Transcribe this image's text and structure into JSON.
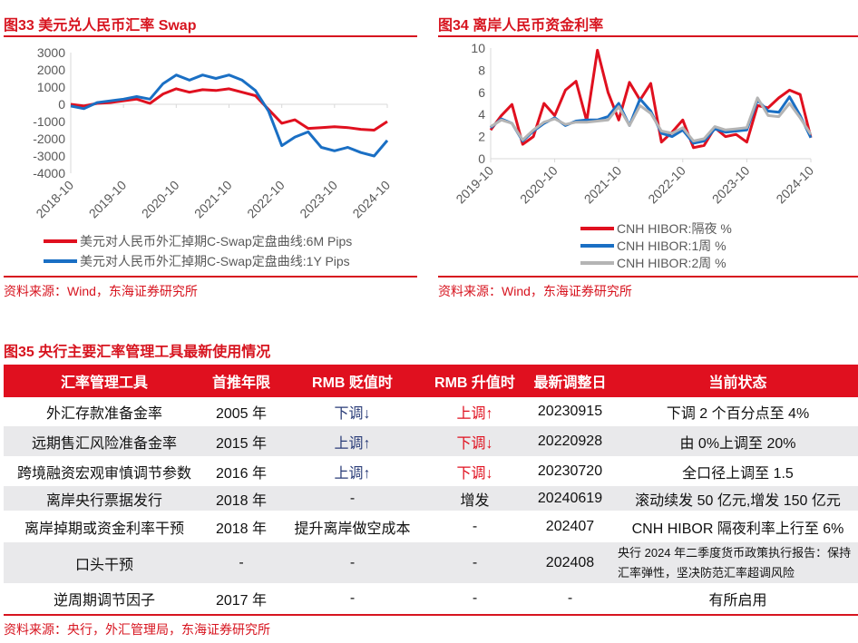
{
  "figure33": {
    "title": "图33  美元兑人民币汇率 Swap",
    "source": "资料来源：Wind，东海证券研究所"
  },
  "figure34": {
    "title": "图34  离岸人民币资金利率",
    "source": "资料来源：Wind，东海证券研究所"
  },
  "chart_data": [
    {
      "type": "line",
      "ylim": [
        -4000,
        3000
      ],
      "yticks": [
        "3000",
        "2000",
        "1000",
        "0",
        "-1000",
        "-2000",
        "-3000",
        "-4000"
      ],
      "xticks": [
        "2018-10",
        "2019-10",
        "2020-10",
        "2021-10",
        "2022-10",
        "2023-10",
        "2024-10"
      ],
      "legend_position": "bottom",
      "grid": false,
      "x": [
        "2018-10",
        "2019-01",
        "2019-04",
        "2019-07",
        "2019-10",
        "2020-01",
        "2020-04",
        "2020-07",
        "2020-10",
        "2021-01",
        "2021-04",
        "2021-07",
        "2021-10",
        "2022-01",
        "2022-04",
        "2022-07",
        "2022-10",
        "2023-01",
        "2023-04",
        "2023-07",
        "2023-10",
        "2024-01",
        "2024-04",
        "2024-07",
        "2024-10"
      ],
      "series": [
        {
          "name": "美元对人民币外汇掉期C-Swap定盘曲线:6M Pips",
          "color": "#e0101f",
          "values": [
            0,
            -100,
            50,
            100,
            200,
            300,
            50,
            600,
            900,
            700,
            850,
            800,
            900,
            700,
            500,
            -300,
            -1100,
            -900,
            -1400,
            -1350,
            -1300,
            -1350,
            -1450,
            -1500,
            -1000
          ]
        },
        {
          "name": "美元对人民币外汇掉期C-Swap定盘曲线:1Y Pips",
          "color": "#1a6fc4",
          "values": [
            -100,
            -250,
            100,
            200,
            300,
            450,
            300,
            1200,
            1700,
            1400,
            1700,
            1500,
            1700,
            1400,
            800,
            -400,
            -2400,
            -1900,
            -1600,
            -2500,
            -2700,
            -2500,
            -2800,
            -3000,
            -2100
          ]
        }
      ]
    },
    {
      "type": "line",
      "ylim": [
        0,
        10
      ],
      "yticks": [
        "10",
        "8",
        "6",
        "4",
        "2",
        "0"
      ],
      "xticks": [
        "2019-10",
        "2020-10",
        "2021-10",
        "2022-10",
        "2023-10",
        "2024-10"
      ],
      "legend_position": "bottom",
      "grid": false,
      "x": [
        "2019-10",
        "2019-12",
        "2020-02",
        "2020-04",
        "2020-06",
        "2020-08",
        "2020-10",
        "2020-12",
        "2021-02",
        "2021-04",
        "2021-06",
        "2021-08",
        "2021-10",
        "2021-12",
        "2022-02",
        "2022-04",
        "2022-06",
        "2022-08",
        "2022-10",
        "2022-12",
        "2023-02",
        "2023-04",
        "2023-06",
        "2023-08",
        "2023-10",
        "2023-12",
        "2024-02",
        "2024-04",
        "2024-06",
        "2024-08",
        "2024-10"
      ],
      "series": [
        {
          "name": "CNH HIBOR:隔夜 %",
          "color": "#e0101f",
          "values": [
            2.6,
            3.9,
            4.9,
            1.3,
            2.0,
            5.0,
            3.9,
            6.2,
            7.0,
            3.4,
            9.8,
            6.0,
            3.5,
            6.9,
            5.3,
            6.8,
            1.5,
            2.4,
            3.5,
            1.0,
            1.2,
            2.8,
            2.0,
            2.2,
            1.5,
            4.8,
            4.6,
            5.5,
            6.2,
            5.8,
            1.9
          ]
        },
        {
          "name": "CNH HIBOR:1周 %",
          "color": "#1a6fc4",
          "values": [
            2.8,
            3.6,
            3.2,
            1.6,
            2.5,
            3.2,
            3.7,
            3.0,
            3.4,
            3.5,
            3.5,
            3.8,
            5.0,
            3.0,
            5.4,
            4.3,
            2.3,
            2.0,
            2.6,
            1.4,
            1.6,
            2.7,
            2.4,
            2.5,
            2.6,
            5.3,
            4.3,
            4.2,
            5.6,
            3.9,
            1.9
          ]
        },
        {
          "name": "CNH HIBOR:2周 %",
          "color": "#b4b4b4",
          "values": [
            2.9,
            3.5,
            3.2,
            1.7,
            2.6,
            3.3,
            3.6,
            3.1,
            3.3,
            3.3,
            3.4,
            3.5,
            4.7,
            3.0,
            4.8,
            4.1,
            2.5,
            2.3,
            2.8,
            1.6,
            1.8,
            2.9,
            2.6,
            2.7,
            2.8,
            5.5,
            3.9,
            3.8,
            5.0,
            3.7,
            2.2
          ]
        }
      ]
    }
  ],
  "figure35": {
    "title": "图35   央行主要汇率管理工具最新使用情况",
    "source": "资料来源：央行，外汇管理局，东海证券研究所",
    "headers": [
      "汇率管理工具",
      "首推年限",
      "RMB 贬值时",
      "RMB 升值时",
      "最新调整日",
      "当前状态"
    ],
    "rows": [
      [
        "外汇存款准备金率",
        "2005 年",
        "下调↓",
        "上调↑",
        "20230915",
        "下调 2 个百分点至 4%"
      ],
      [
        "远期售汇风险准备金率",
        "2015 年",
        "上调↑",
        "下调↓",
        "20220928",
        "由 0%上调至 20%"
      ],
      [
        "跨境融资宏观审慎调节参数",
        "2016 年",
        "上调↑",
        "下调↓",
        "20230720",
        "全口径上调至 1.5"
      ],
      [
        "离岸央行票据发行",
        "2018 年",
        "-",
        "增发",
        "20240619",
        "滚动续发 50 亿元,增发 150 亿元"
      ],
      [
        "离岸掉期或资金利率干预",
        "2018 年",
        "提升离岸做空成本",
        "-",
        "202407",
        "CNH HIBOR 隔夜利率上行至 6%"
      ],
      [
        "口头干预",
        "-",
        "-",
        "-",
        "202408",
        "央行 2024 年二季度货币政策执行报告：保持汇率弹性，坚决防范汇率超调风险"
      ],
      [
        "逆周期调节因子",
        "2017 年",
        "-",
        "-",
        "-",
        "有所启用"
      ]
    ]
  }
}
